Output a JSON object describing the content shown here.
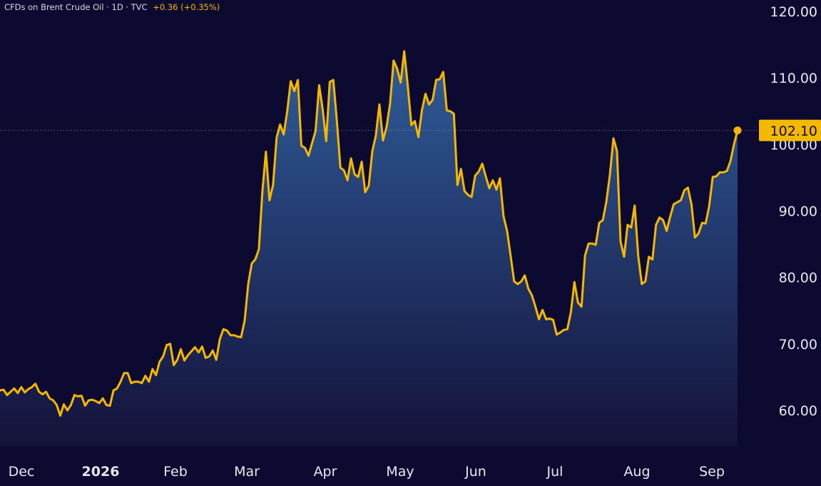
{
  "header": {
    "symbol": "CFDs on Brent Crude Oil · 1D · TVC",
    "change": "+0.36 (+0.35%)"
  },
  "colors": {
    "background": "#0c0a30",
    "line": "#f5b800",
    "fill_top": "#2f5c9a",
    "fill_bottom": "#14123a",
    "text": "#e6e8f0"
  },
  "chart_data": {
    "type": "area",
    "title": "CFDs on Brent Crude Oil · 1D · TVC",
    "xlabel": "",
    "ylabel": "",
    "ylim": [
      54,
      121
    ],
    "yticks": [
      "60.00",
      "70.00",
      "80.00",
      "90.00",
      "100.00",
      "110.00",
      "120.00"
    ],
    "x_tick_labels": [
      "Dec",
      "2026",
      "Feb",
      "Mar",
      "Apr",
      "May",
      "Jun",
      "Jul",
      "Aug",
      "Sep"
    ],
    "last_value": "102.10",
    "grid": false,
    "series": [
      {
        "values": [
          63.0,
          63.1,
          62.3,
          62.8,
          63.3,
          62.6,
          63.5,
          62.7,
          63.2,
          63.5,
          64.0,
          62.8,
          62.4,
          62.8,
          61.8,
          61.5,
          60.8,
          59.2,
          60.9,
          60.0,
          60.8,
          62.3,
          62.1,
          62.2,
          60.7,
          61.5,
          61.6,
          61.4,
          61.1,
          61.8,
          60.8,
          60.7,
          63.0,
          63.3,
          64.3,
          65.6,
          65.6,
          64.1,
          64.3,
          64.3,
          64.1,
          65.2,
          64.3,
          66.2,
          65.3,
          67.3,
          68.1,
          69.8,
          70.0,
          66.8,
          67.6,
          69.2,
          67.5,
          68.3,
          68.9,
          69.5,
          68.7,
          69.6,
          67.9,
          68.1,
          69.0,
          67.6,
          70.7,
          72.2,
          72.0,
          71.3,
          71.3,
          71.1,
          71.0,
          73.5,
          79.0,
          82.1,
          82.7,
          84.2,
          93.0,
          98.9,
          91.6,
          93.9,
          101.0,
          103.0,
          101.5,
          105.0,
          109.5,
          108.0,
          109.7,
          99.8,
          99.5,
          98.3,
          100.2,
          102.0,
          108.9,
          105.3,
          100.5,
          109.4,
          109.7,
          103.5,
          96.5,
          96.1,
          94.6,
          97.9,
          95.5,
          95.1,
          97.4,
          92.8,
          93.8,
          99.0,
          101.3,
          106.0,
          100.6,
          102.6,
          106.1,
          112.6,
          111.4,
          109.3,
          114.0,
          108.8,
          102.9,
          103.5,
          101.1,
          105.2,
          107.6,
          106.0,
          106.7,
          109.7,
          109.8,
          110.9,
          105.1,
          105.0,
          104.6,
          93.9,
          96.3,
          93.0,
          92.4,
          92.1,
          95.3,
          95.9,
          97.1,
          95.2,
          93.4,
          94.6,
          93.2,
          94.9,
          89.2,
          87.0,
          83.3,
          79.4,
          79.0,
          79.4,
          80.3,
          78.3,
          77.3,
          75.6,
          73.7,
          75.1,
          73.7,
          73.8,
          73.6,
          71.4,
          71.7,
          72.1,
          72.2,
          74.8,
          79.3,
          76.2,
          75.6,
          83.3,
          85.1,
          85.1,
          84.9,
          88.2,
          88.6,
          91.4,
          95.4,
          100.9,
          99.0,
          85.4,
          83.1,
          87.9,
          87.5,
          90.8,
          83.2,
          79.0,
          79.4,
          83.1,
          82.7,
          87.9,
          89.0,
          88.6,
          87.0,
          89.1,
          91.0,
          91.3,
          91.6,
          93.1,
          93.5,
          91.0,
          86.0,
          86.6,
          88.2,
          88.1,
          90.7,
          95.1,
          95.2,
          95.8,
          95.8,
          96.0,
          97.5,
          100.0,
          102.1
        ]
      }
    ]
  }
}
